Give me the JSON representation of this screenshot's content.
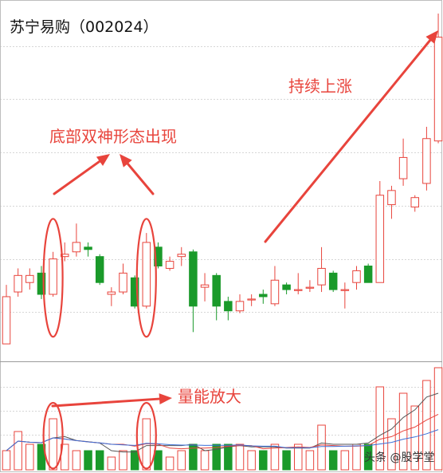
{
  "title": "苏宁易购（002024）",
  "watermark": "头条 @股学堂",
  "annotations": {
    "double_bottom": "底部双神形态出现",
    "rising": "持续上涨",
    "volume": "量能放大"
  },
  "colors": {
    "up": "#e8443c",
    "down": "#1a9a2a",
    "grid": "#d6d6d6",
    "annotation": "#e8443c",
    "ma_line": "#555555"
  },
  "chart_data": [
    {
      "type": "candlestick",
      "title": "苏宁易购（002024）",
      "grid": true,
      "candles": [
        {
          "o": 11.3,
          "c": 13.3,
          "h": 13.8,
          "l": 11.3,
          "dir": "up"
        },
        {
          "o": 13.5,
          "c": 14.2,
          "h": 14.5,
          "l": 13.3,
          "dir": "up"
        },
        {
          "o": 13.9,
          "c": 14.2,
          "h": 14.5,
          "l": 13.6,
          "dir": "up"
        },
        {
          "o": 14.3,
          "c": 13.4,
          "h": 14.6,
          "l": 13.2,
          "dir": "down"
        },
        {
          "o": 13.4,
          "c": 14.9,
          "h": 15.2,
          "l": 13.3,
          "dir": "up"
        },
        {
          "o": 15.0,
          "c": 15.1,
          "h": 15.6,
          "l": 14.8,
          "dir": "up"
        },
        {
          "o": 15.2,
          "c": 15.6,
          "h": 16.4,
          "l": 15.0,
          "dir": "up"
        },
        {
          "o": 15.4,
          "c": 15.3,
          "h": 15.6,
          "l": 15.0,
          "dir": "down"
        },
        {
          "o": 15.0,
          "c": 13.9,
          "h": 15.1,
          "l": 13.8,
          "dir": "down"
        },
        {
          "o": 13.4,
          "c": 13.5,
          "h": 13.7,
          "l": 12.9,
          "dir": "up"
        },
        {
          "o": 13.5,
          "c": 14.3,
          "h": 14.7,
          "l": 13.4,
          "dir": "up"
        },
        {
          "o": 14.1,
          "c": 12.9,
          "h": 14.2,
          "l": 12.8,
          "dir": "down"
        },
        {
          "o": 12.9,
          "c": 15.6,
          "h": 16.0,
          "l": 12.8,
          "dir": "up"
        },
        {
          "o": 15.4,
          "c": 14.6,
          "h": 15.6,
          "l": 14.5,
          "dir": "down"
        },
        {
          "o": 14.5,
          "c": 14.8,
          "h": 15.0,
          "l": 14.4,
          "dir": "up"
        },
        {
          "o": 15.0,
          "c": 15.1,
          "h": 15.4,
          "l": 14.6,
          "dir": "up"
        },
        {
          "o": 15.2,
          "c": 12.9,
          "h": 15.3,
          "l": 11.8,
          "dir": "down"
        },
        {
          "o": 13.7,
          "c": 13.8,
          "h": 14.3,
          "l": 13.1,
          "dir": "up"
        },
        {
          "o": 14.2,
          "c": 12.9,
          "h": 14.3,
          "l": 12.3,
          "dir": "down"
        },
        {
          "o": 13.1,
          "c": 12.7,
          "h": 13.3,
          "l": 12.3,
          "dir": "down"
        },
        {
          "o": 12.7,
          "c": 13.1,
          "h": 13.4,
          "l": 12.6,
          "dir": "up"
        },
        {
          "o": 13.2,
          "c": 13.2,
          "h": 13.4,
          "l": 12.9,
          "dir": "up"
        },
        {
          "o": 13.4,
          "c": 13.3,
          "h": 13.6,
          "l": 13.0,
          "dir": "down"
        },
        {
          "o": 13.0,
          "c": 14.0,
          "h": 14.6,
          "l": 12.9,
          "dir": "up"
        },
        {
          "o": 13.8,
          "c": 13.6,
          "h": 13.9,
          "l": 13.4,
          "dir": "down"
        },
        {
          "o": 13.6,
          "c": 13.6,
          "h": 14.3,
          "l": 13.4,
          "dir": "up"
        },
        {
          "o": 13.7,
          "c": 13.7,
          "h": 14.0,
          "l": 13.5,
          "dir": "up"
        },
        {
          "o": 13.8,
          "c": 14.5,
          "h": 15.4,
          "l": 13.5,
          "dir": "up"
        },
        {
          "o": 14.3,
          "c": 13.6,
          "h": 14.4,
          "l": 13.5,
          "dir": "down"
        },
        {
          "o": 13.6,
          "c": 13.6,
          "h": 13.9,
          "l": 12.8,
          "dir": "up"
        },
        {
          "o": 13.9,
          "c": 14.4,
          "h": 14.6,
          "l": 13.6,
          "dir": "up"
        },
        {
          "o": 14.6,
          "c": 13.9,
          "h": 14.7,
          "l": 13.9,
          "dir": "down"
        },
        {
          "o": 13.9,
          "c": 17.6,
          "h": 18.2,
          "l": 13.9,
          "dir": "up"
        },
        {
          "o": 17.2,
          "c": 17.8,
          "h": 18.0,
          "l": 16.6,
          "dir": "up"
        },
        {
          "o": 18.3,
          "c": 19.2,
          "h": 20.0,
          "l": 18.0,
          "dir": "up"
        },
        {
          "o": 17.1,
          "c": 17.5,
          "h": 17.6,
          "l": 16.9,
          "dir": "up"
        },
        {
          "o": 18.1,
          "c": 20.0,
          "h": 20.5,
          "l": 17.8,
          "dir": "up"
        },
        {
          "o": 19.9,
          "c": 24.3,
          "h": 25.3,
          "l": 19.8,
          "dir": "up"
        }
      ],
      "ylim": [
        11.0,
        25.4
      ]
    },
    {
      "type": "bar",
      "series": [
        {
          "values": [
            3,
            6,
            4,
            4,
            8,
            4,
            3,
            3,
            3,
            2,
            3,
            3,
            8,
            3,
            2,
            3,
            4,
            3,
            4,
            4,
            4,
            3,
            3,
            4,
            3,
            4,
            3,
            7,
            3,
            3,
            4,
            4,
            13,
            8,
            12,
            10,
            14,
            16
          ]
        }
      ],
      "ylim": [
        0,
        16.5
      ]
    }
  ]
}
